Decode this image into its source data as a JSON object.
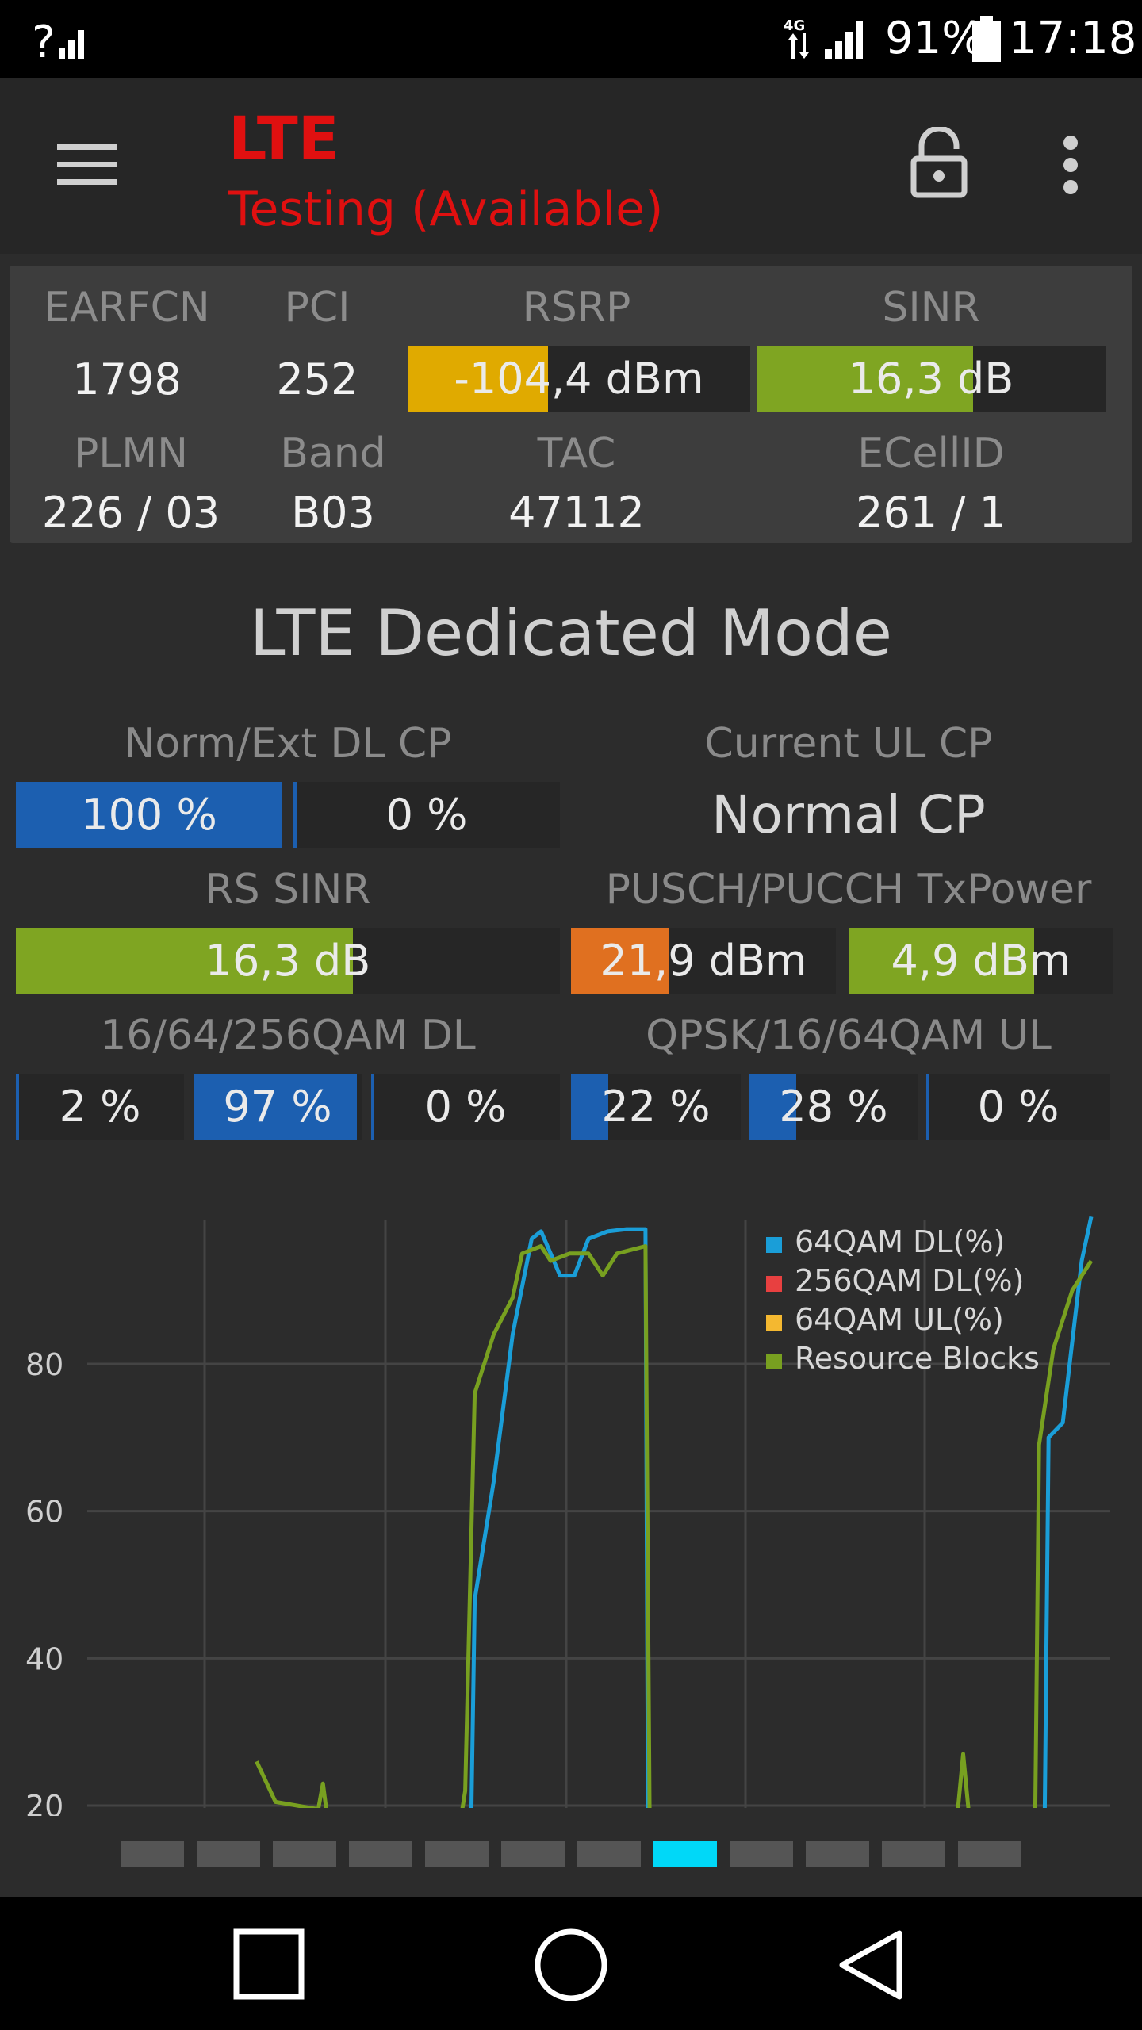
{
  "status_bar": {
    "left_icon": "signal-question-icon",
    "network_badge": "4G",
    "battery_percent": "91%",
    "time": "17:18"
  },
  "toolbar": {
    "title": "LTE",
    "subtitle": "Testing (Available)",
    "menu_icon": "hamburger-menu-icon",
    "lock_icon": "unlocked-padlock-icon",
    "overflow_icon": "more-vert-icon",
    "title_color": "#e01010"
  },
  "cell_info": {
    "earfcn_label": "EARFCN",
    "earfcn": "1798",
    "pci_label": "PCI",
    "pci": "252",
    "rsrp_label": "RSRP",
    "rsrp": "-104,4 dBm",
    "rsrp_fill": 0.41,
    "rsrp_color": "#e0aa00",
    "sinr_label": "SINR",
    "sinr": "16,3 dB",
    "sinr_fill": 0.62,
    "sinr_color": "#7fa522",
    "plmn_label": "PLMN",
    "plmn": "226 / 03",
    "band_label": "Band",
    "band": "B03",
    "tac_label": "TAC",
    "tac": "47112",
    "ecellid_label": "ECellID",
    "ecellid": "261 / 1"
  },
  "dedicated": {
    "title": "LTE Dedicated Mode",
    "dl_cp_label": "Norm/Ext DL CP",
    "dl_cp_norm": "100 %",
    "dl_cp_norm_fill": 1.0,
    "dl_cp_ext": "0 %",
    "dl_cp_ext_fill": 0.0,
    "ul_cp_label": "Current UL CP",
    "ul_cp_value": "Normal CP",
    "rs_sinr_label": "RS SINR",
    "rs_sinr": "16,3 dB",
    "rs_sinr_fill": 0.62,
    "txpower_label": "PUSCH/PUCCH TxPower",
    "pusch": "21,9 dBm",
    "pusch_fill": 0.37,
    "pusch_color": "#e07020",
    "pucch": "4,9 dBm",
    "pucch_fill": 0.7,
    "qam_dl_label": "16/64/256QAM DL",
    "qam_dl": [
      {
        "value": "2 %",
        "fill": 0.02
      },
      {
        "value": "97 %",
        "fill": 0.97
      },
      {
        "value": "0 %",
        "fill": 0.0
      }
    ],
    "qam_ul_label": "QPSK/16/64QAM UL",
    "qam_ul": [
      {
        "value": "22 %",
        "fill": 0.22
      },
      {
        "value": "28 %",
        "fill": 0.28
      },
      {
        "value": "0 %",
        "fill": 0.0
      }
    ],
    "blue": "#1c5fb0"
  },
  "chart_data": {
    "type": "line",
    "y_ticks": [
      "80",
      "60",
      "40",
      "20"
    ],
    "ylim": [
      20,
      100
    ],
    "xlim": [
      0,
      100
    ],
    "legend_position": "top-right",
    "grid": true,
    "series": [
      {
        "name": "64QAM DL(%)",
        "color": "#1a9ed8",
        "points": [
          [
            34.5,
            0
          ],
          [
            35,
            48
          ],
          [
            37,
            64
          ],
          [
            39,
            84
          ],
          [
            41,
            97
          ],
          [
            42,
            98
          ],
          [
            43,
            95
          ],
          [
            44,
            92
          ],
          [
            45.5,
            92
          ],
          [
            47,
            97
          ],
          [
            49,
            98
          ],
          [
            51,
            98.3
          ],
          [
            53,
            98.3
          ],
          [
            53.3,
            0
          ],
          [
            95,
            0
          ],
          [
            95.5,
            70
          ],
          [
            97,
            72
          ],
          [
            99,
            94
          ],
          [
            100,
            100
          ]
        ]
      },
      {
        "name": "256QAM DL(%)",
        "color": "#e84040",
        "points": []
      },
      {
        "name": "64QAM UL(%)",
        "color": "#f4b830",
        "points": []
      },
      {
        "name": "Resource Blocks",
        "color": "#78a020",
        "points": [
          [
            12,
            26
          ],
          [
            14,
            20.5
          ],
          [
            18.5,
            19.5
          ],
          [
            19,
            23
          ],
          [
            19.5,
            18
          ],
          [
            33.5,
            18
          ],
          [
            34,
            22
          ],
          [
            35,
            76
          ],
          [
            37,
            84
          ],
          [
            39,
            89
          ],
          [
            40,
            95
          ],
          [
            42,
            96
          ],
          [
            43,
            94
          ],
          [
            45,
            95
          ],
          [
            47,
            95
          ],
          [
            48.5,
            92
          ],
          [
            50,
            95
          ],
          [
            53,
            96
          ],
          [
            53.5,
            0
          ],
          [
            72.5,
            0
          ],
          [
            73,
            19
          ],
          [
            74.5,
            19
          ],
          [
            75,
            0
          ],
          [
            85,
            0
          ],
          [
            86.5,
            27
          ],
          [
            88,
            0
          ],
          [
            94,
            0
          ],
          [
            94.5,
            69
          ],
          [
            96,
            82
          ],
          [
            98,
            90
          ],
          [
            100,
            94
          ]
        ]
      }
    ]
  },
  "pager": {
    "count": 12,
    "active_index": 7,
    "active_color": "#00d8f8",
    "inactive_color": "#555555"
  },
  "nav": {
    "back_icon": "back-triangle-icon",
    "home_icon": "home-circle-icon",
    "recents_icon": "recents-square-icon"
  }
}
